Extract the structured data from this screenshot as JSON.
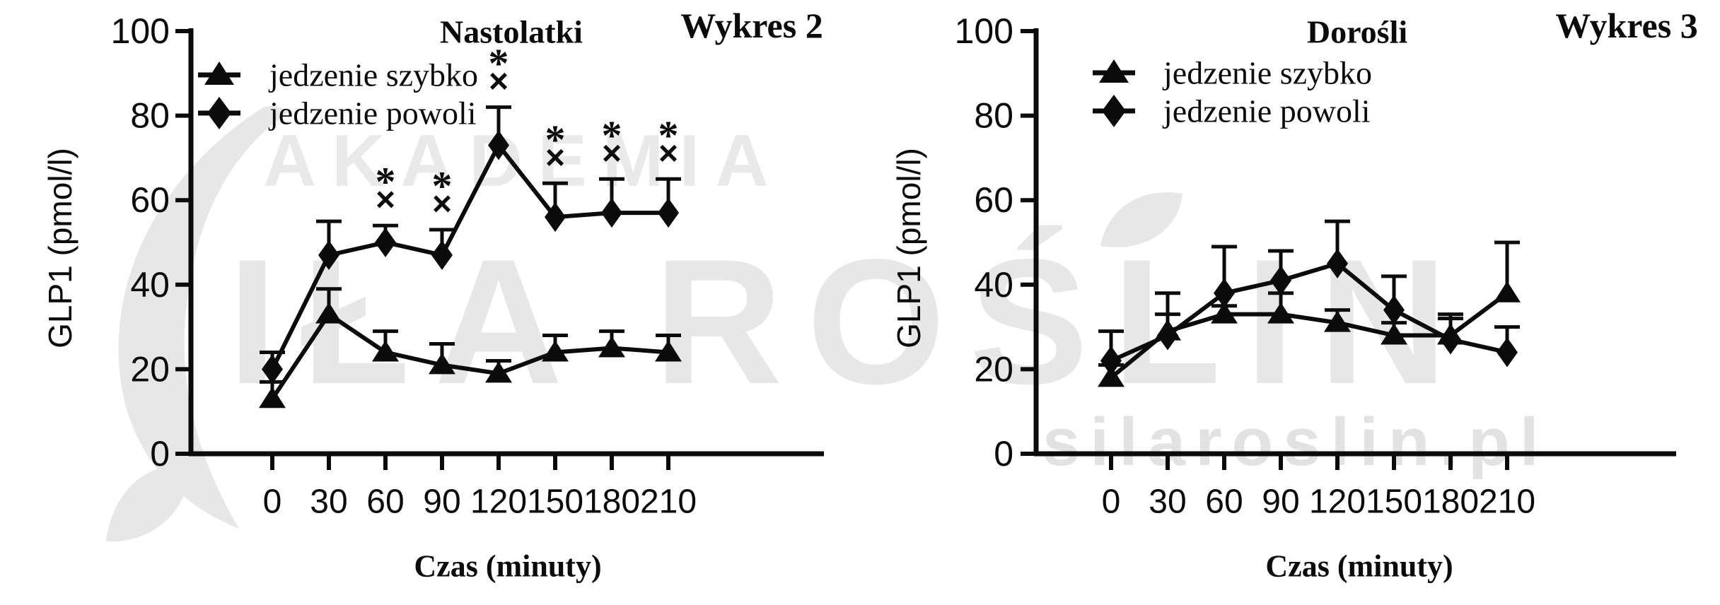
{
  "page": {
    "background": "#ffffff",
    "ink_color": "#0b0b0b",
    "watermark_color": "#e7e7e7"
  },
  "watermarks": {
    "akademia": "AKADEMIA",
    "sila_roslin": "IŁA ROŚLIN",
    "site_url": "silaroslin.pl",
    "leaf_icons": [
      "swoosh-leaf",
      "small-leaf",
      "accent-leaf"
    ]
  },
  "chart_data": [
    {
      "type": "line",
      "corner_label": "Wykres 2",
      "title": "Nastolatki",
      "xlabel": "Czas (minuty)",
      "ylabel": "GLP1 (pmol/l)",
      "x_ticks": [
        0,
        30,
        60,
        90,
        120,
        150,
        180,
        210
      ],
      "y_ticks": [
        0,
        20,
        40,
        60,
        80,
        100
      ],
      "ylim": [
        0,
        100
      ],
      "grid": false,
      "legend_position": "top-left-inside",
      "legend": [
        {
          "label": "jedzenie szybko",
          "marker": "triangle"
        },
        {
          "label": "jedzenie powoli",
          "marker": "diamond"
        }
      ],
      "x": [
        0,
        30,
        60,
        90,
        120,
        150,
        180,
        210
      ],
      "series": [
        {
          "name": "jedzenie szybko",
          "marker": "triangle",
          "values": [
            13,
            33,
            24,
            21,
            19,
            24,
            25,
            24
          ],
          "err_up": [
            4,
            6,
            5,
            5,
            3,
            4,
            4,
            4
          ],
          "annotated_x": []
        },
        {
          "name": "jedzenie powoli",
          "marker": "diamond",
          "values": [
            20,
            47,
            50,
            47,
            73,
            56,
            57,
            57
          ],
          "err_up": [
            4,
            8,
            4,
            6,
            9,
            8,
            8,
            8
          ],
          "annotated_x": [
            60,
            90,
            120,
            150,
            180,
            210
          ]
        }
      ],
      "annotation_symbols": {
        "top": "*",
        "bottom": "×"
      }
    },
    {
      "type": "line",
      "corner_label": "Wykres 3",
      "title": "Dorośli",
      "xlabel": "Czas (minuty)",
      "ylabel": "GLP1 (pmol/l)",
      "x_ticks": [
        0,
        30,
        60,
        90,
        120,
        150,
        180,
        210
      ],
      "y_ticks": [
        0,
        20,
        40,
        60,
        80,
        100
      ],
      "ylim": [
        0,
        100
      ],
      "grid": false,
      "legend_position": "top-left-inside",
      "legend": [
        {
          "label": "jedzenie szybko",
          "marker": "triangle"
        },
        {
          "label": "jedzenie powoli",
          "marker": "diamond"
        }
      ],
      "x": [
        0,
        30,
        60,
        90,
        120,
        150,
        180,
        210
      ],
      "series": [
        {
          "name": "jedzenie szybko",
          "marker": "triangle",
          "values": [
            18,
            29,
            33,
            33,
            31,
            28,
            28,
            38
          ],
          "err_up": [
            3,
            4,
            2,
            5,
            3,
            3,
            5,
            12
          ],
          "annotated_x": []
        },
        {
          "name": "jedzenie powoli",
          "marker": "diamond",
          "values": [
            22,
            28,
            38,
            41,
            45,
            34,
            27,
            24
          ],
          "err_up": [
            7,
            10,
            11,
            7,
            10,
            8,
            5,
            6
          ],
          "annotated_x": []
        }
      ],
      "annotation_symbols": {
        "top": "*",
        "bottom": "×"
      }
    }
  ]
}
